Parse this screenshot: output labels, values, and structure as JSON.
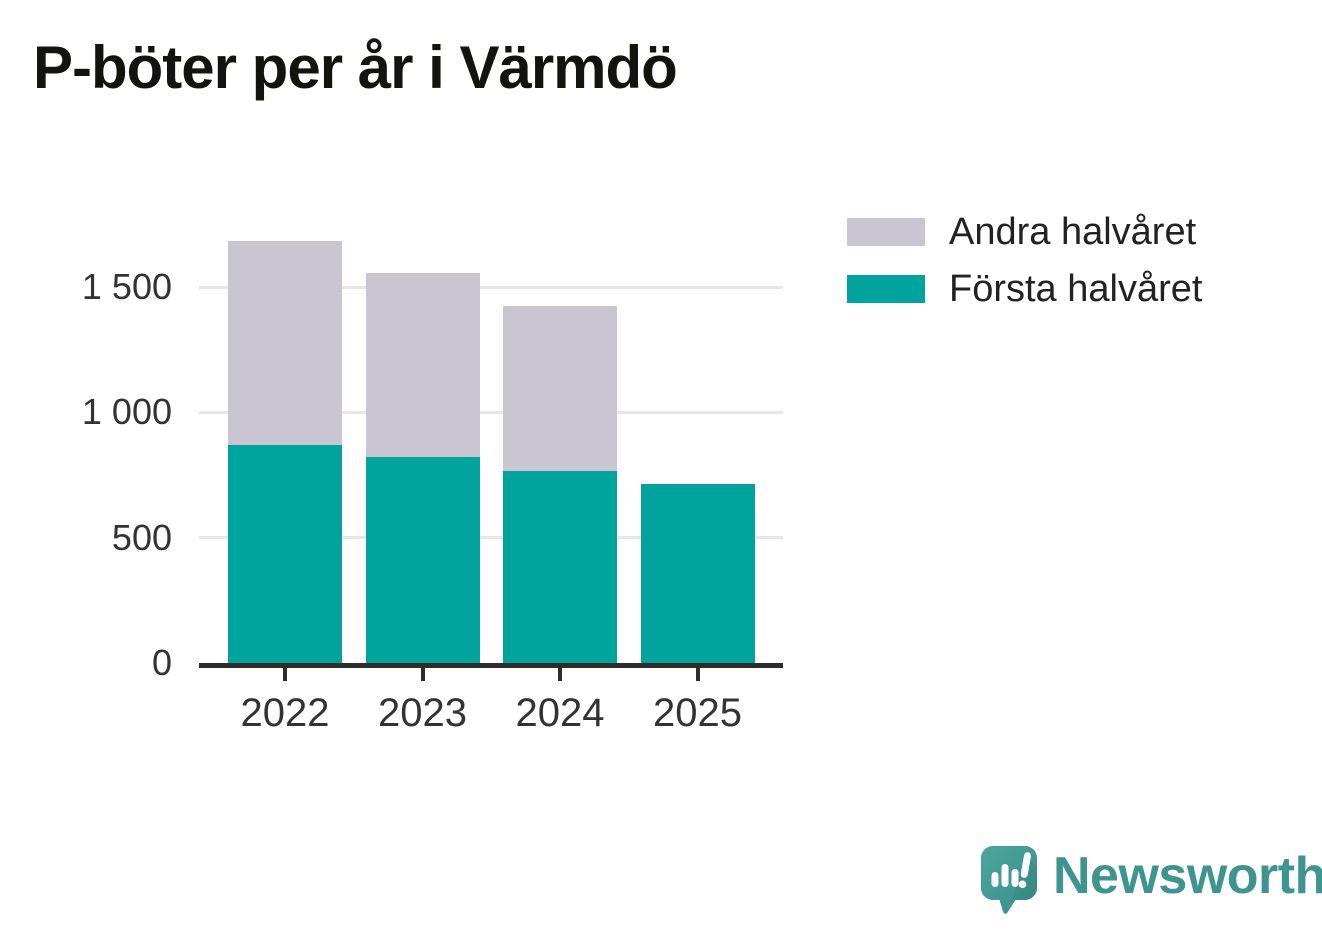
{
  "title": "P-böter per år i Värmdö",
  "chart_data": {
    "type": "bar",
    "stacked": true,
    "title": "P-böter per år i Värmdö",
    "categories": [
      "2022",
      "2023",
      "2024",
      "2025"
    ],
    "series": [
      {
        "name": "Första halvåret",
        "color": "#00a49c",
        "values": [
          870,
          820,
          765,
          715
        ]
      },
      {
        "name": "Andra halvåret",
        "color": "#c9c6d2",
        "values": [
          815,
          735,
          660,
          0
        ]
      }
    ],
    "xlabel": "",
    "ylabel": "",
    "ylim": [
      0,
      1700
    ],
    "yticks": [
      {
        "value": 0,
        "label": "0"
      },
      {
        "value": 500,
        "label": "500"
      },
      {
        "value": 1000,
        "label": "1 000"
      },
      {
        "value": 1500,
        "label": "1 500"
      }
    ],
    "grid": "horizontal",
    "legend_position": "top-right",
    "legend": [
      {
        "label": "Andra halvåret",
        "color": "#c9c6d2"
      },
      {
        "label": "Första halvåret",
        "color": "#00a49c"
      }
    ]
  },
  "branding": {
    "logo_text": "Newsworthy",
    "logo_color": "#3e948e",
    "icon": "newsworthy-speech-bubble-chart-icon"
  },
  "colors": {
    "first_half": "#00a49c",
    "second_half": "#c9c6d2",
    "axis": "#2d2d2d",
    "gridline": "#e7e7e7",
    "tick_label": "#333333",
    "title": "#14140f"
  }
}
